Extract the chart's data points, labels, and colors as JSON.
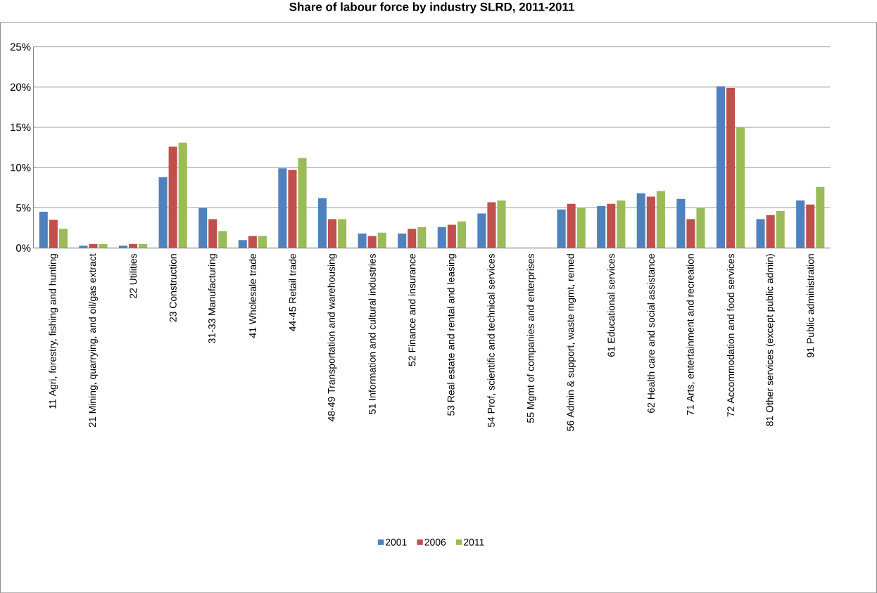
{
  "chart_data": {
    "type": "bar",
    "title": "Share of labour force by industry SLRD, 2011-2011",
    "categories": [
      "11 Agri, forestry, fishing and hunting",
      "21 Mining, quarrying, and oil/gas extract",
      "22 Utilities",
      "23 Construction",
      "31-33 Manufacturing",
      "41 Wholesale trade",
      "44-45 Retail trade",
      "48-49 Transportation and warehousing",
      "51 Information and cultural industries",
      "52 Finance and insurance",
      "53 Real estate and rental and leasing",
      "54 Prof, scientific and technical services",
      "55 Mgmt of companies and enterprises",
      "56 Admin & support, waste mgmt, remed",
      "61 Educational services",
      "62 Health care and social assistance",
      "71 Arts, entertainment and recreation",
      "72 Accommodation and food services",
      "81 Other services (except public admin)",
      "91 Public administration"
    ],
    "series": [
      {
        "name": "2001",
        "color": "#4f81bd",
        "values": [
          4.5,
          0.3,
          0.3,
          8.8,
          5.0,
          1.0,
          9.9,
          6.2,
          1.8,
          1.8,
          2.6,
          4.3,
          0,
          4.8,
          5.2,
          6.8,
          6.1,
          20.1,
          3.6,
          5.9
        ]
      },
      {
        "name": "2006",
        "color": "#c0504d",
        "values": [
          3.5,
          0.5,
          0.5,
          12.6,
          3.6,
          1.5,
          9.7,
          3.6,
          1.5,
          2.4,
          2.9,
          5.7,
          0,
          5.5,
          5.5,
          6.4,
          3.6,
          19.9,
          4.1,
          5.4
        ]
      },
      {
        "name": "2011",
        "color": "#9bbb59",
        "values": [
          2.4,
          0.5,
          0.5,
          13.1,
          2.1,
          1.5,
          11.2,
          3.6,
          1.9,
          2.6,
          3.3,
          5.9,
          0,
          5.0,
          5.9,
          7.1,
          5.0,
          15.0,
          4.6,
          7.6
        ]
      }
    ],
    "ylim": [
      0,
      25
    ],
    "yticks": [
      {
        "value": 0,
        "label": "0%"
      },
      {
        "value": 5,
        "label": "5%"
      },
      {
        "value": 10,
        "label": "10%"
      },
      {
        "value": 15,
        "label": "15%"
      },
      {
        "value": 20,
        "label": "20%"
      },
      {
        "value": 25,
        "label": "25%"
      }
    ],
    "grid": "y",
    "legend": "bottom"
  }
}
